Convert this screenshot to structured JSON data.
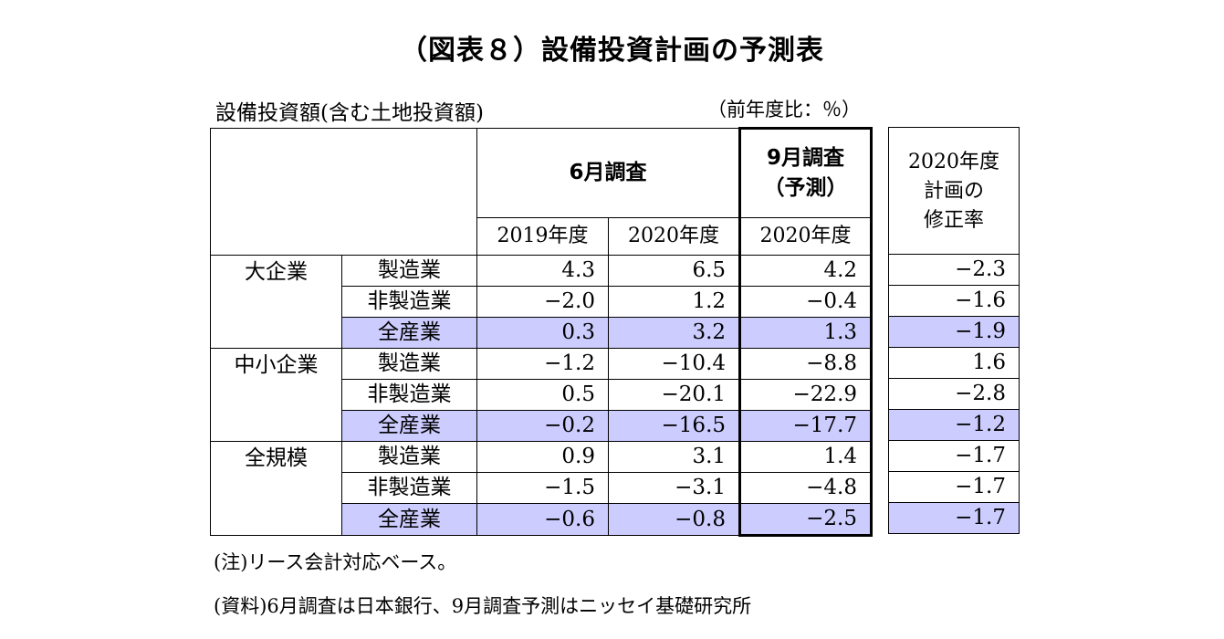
{
  "title": "（図表８）設備投資計画の予測表",
  "subtitle": "設備投資額(含む土地投資額)",
  "unit": "（前年度比：％）",
  "header": {
    "june_survey": "6月調査",
    "sep_survey_line1": "9月調査",
    "sep_survey_line2": "（予測）",
    "year_2019": "2019年度",
    "year_2020a": "2020年度",
    "year_2020b": "2020年度",
    "revision_line1": "2020年度",
    "revision_line2": "計画の",
    "revision_line3": "修正率"
  },
  "groups": [
    {
      "name": "大企業",
      "rows": [
        {
          "segment": "製造業",
          "fy2019": "4.3",
          "fy2020_june": "6.5",
          "fy2020_sep": "4.2",
          "revision": "−2.3"
        },
        {
          "segment": "非製造業",
          "fy2019": "−2.0",
          "fy2020_june": "1.2",
          "fy2020_sep": "−0.4",
          "revision": "−1.6"
        },
        {
          "segment": "全産業",
          "fy2019": "0.3",
          "fy2020_june": "3.2",
          "fy2020_sep": "1.3",
          "revision": "−1.9"
        }
      ]
    },
    {
      "name": "中小企業",
      "rows": [
        {
          "segment": "製造業",
          "fy2019": "−1.2",
          "fy2020_june": "−10.4",
          "fy2020_sep": "−8.8",
          "revision": "1.6"
        },
        {
          "segment": "非製造業",
          "fy2019": "0.5",
          "fy2020_june": "−20.1",
          "fy2020_sep": "−22.9",
          "revision": "−2.8"
        },
        {
          "segment": "全産業",
          "fy2019": "−0.2",
          "fy2020_june": "−16.5",
          "fy2020_sep": "−17.7",
          "revision": "−1.2"
        }
      ]
    },
    {
      "name": "全規模",
      "rows": [
        {
          "segment": "製造業",
          "fy2019": "0.9",
          "fy2020_june": "3.1",
          "fy2020_sep": "1.4",
          "revision": "−1.7"
        },
        {
          "segment": "非製造業",
          "fy2019": "−1.5",
          "fy2020_june": "−3.1",
          "fy2020_sep": "−4.8",
          "revision": "−1.7"
        },
        {
          "segment": "全産業",
          "fy2019": "−0.6",
          "fy2020_june": "−0.8",
          "fy2020_sep": "−2.5",
          "revision": "−1.7"
        }
      ]
    }
  ],
  "notes": {
    "note1": "(注)リース会計対応ベース。",
    "note2": "(資料)6月調査は日本銀行、9月調査予測はニッセイ基礎研究所"
  },
  "colors": {
    "highlight": "#ccccff",
    "border": "#000000"
  }
}
